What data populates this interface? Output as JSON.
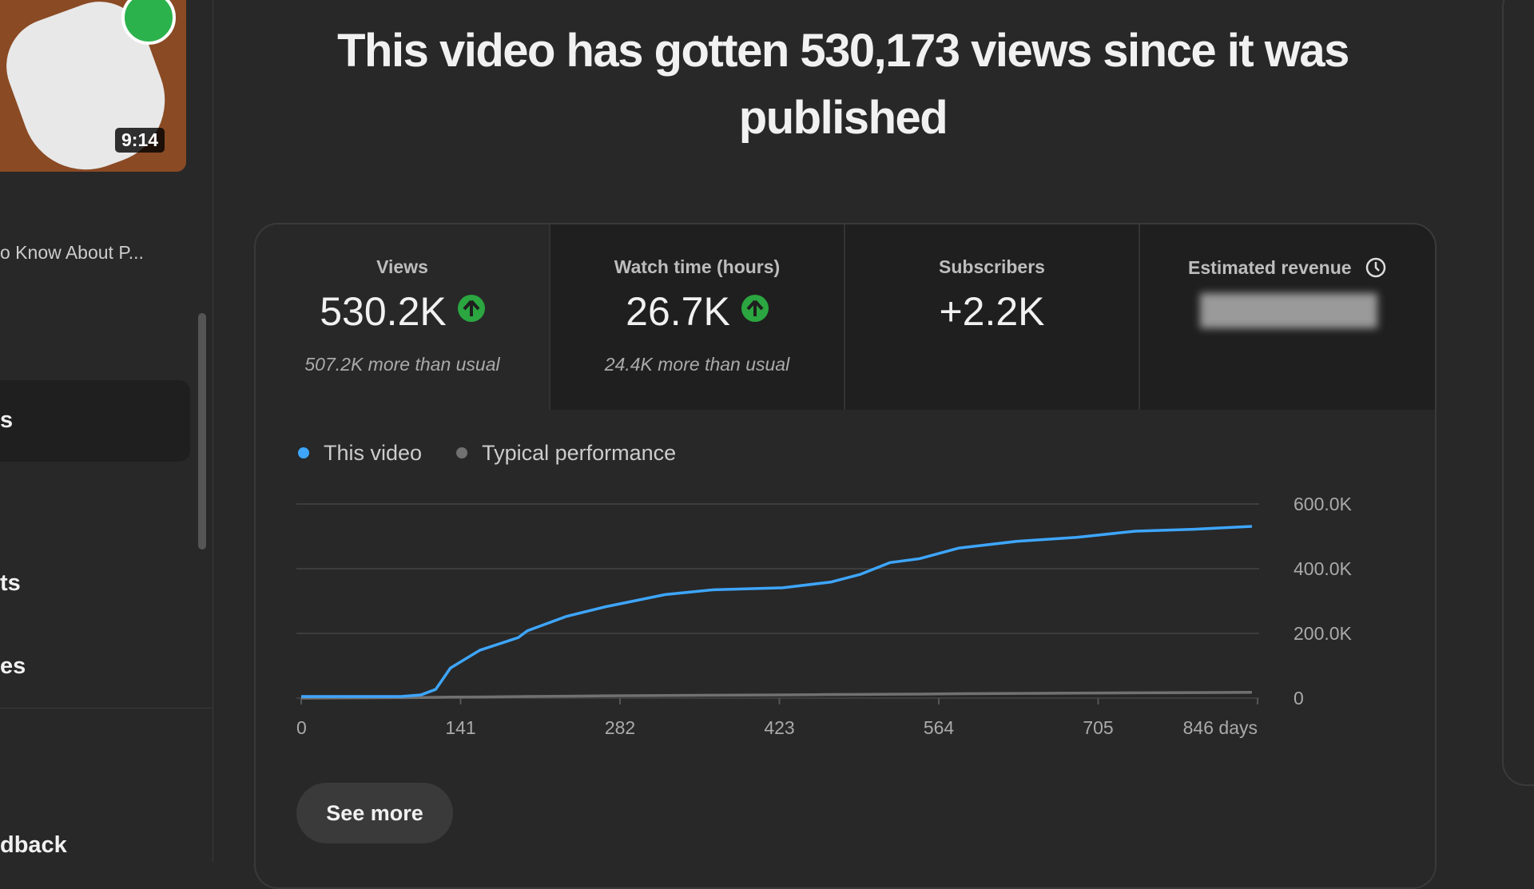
{
  "sidebar": {
    "duration": "9:14",
    "video_title": "o Know About P...",
    "items": [
      "s",
      "ts",
      "es",
      "dback"
    ]
  },
  "header": {
    "title": "This video has gotten 530,173 views since it was published"
  },
  "stats": [
    {
      "label": "Views",
      "value": "530.2K",
      "note": "507.2K more than usual"
    },
    {
      "label": "Watch time (hours)",
      "value": "26.7K",
      "note": "24.4K more than usual"
    },
    {
      "label": "Subscribers",
      "value": "+2.2K"
    },
    {
      "label": "Estimated revenue"
    }
  ],
  "chart_data": {
    "type": "line",
    "x": [
      0,
      88,
      106,
      119,
      132,
      158,
      192,
      200,
      235,
      270,
      322,
      365,
      426,
      469,
      495,
      521,
      547,
      582,
      634,
      686,
      738,
      790,
      841
    ],
    "series": [
      {
        "name": "This video",
        "color": "#3ea6ff",
        "values": [
          5000,
          5000,
          10000,
          27000,
          93000,
          148000,
          187000,
          208000,
          253000,
          283000,
          320000,
          335000,
          341000,
          359000,
          383000,
          419000,
          431000,
          464000,
          485000,
          497000,
          516000,
          522000,
          531000
        ]
      },
      {
        "name": "Typical performance",
        "color": "#717171",
        "values": [
          0,
          1500,
          2000,
          2500,
          3000,
          3500,
          4500,
          5000,
          6000,
          7000,
          8000,
          9000,
          10000,
          11000,
          11500,
          12000,
          12500,
          13500,
          14500,
          15500,
          16500,
          17000,
          18000
        ]
      }
    ],
    "xlim": [
      0,
      846
    ],
    "ylim": [
      0,
      600000
    ],
    "xticks": [
      0,
      141,
      282,
      423,
      564,
      705,
      {
        "value": 846,
        "label": "846 days"
      }
    ],
    "yticks": [
      0,
      {
        "value": 200000,
        "label": "200.0K"
      },
      {
        "value": 400000,
        "label": "400.0K"
      },
      {
        "value": 600000,
        "label": "600.0K"
      }
    ],
    "grid": true
  },
  "button": {
    "label": "See more"
  }
}
